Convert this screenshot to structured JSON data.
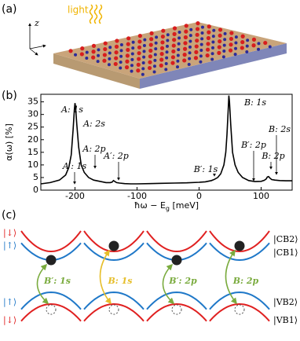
{
  "panel_labels": [
    "(a)",
    "(b)",
    "(c)"
  ],
  "panel_a": {
    "light": "light",
    "axis": "z"
  },
  "chart_data": {
    "type": "line",
    "ylabel": "α(ω) [%]",
    "xlabel": {
      "main": "ħω − E",
      "sub": "g",
      "unit": " [meV]"
    },
    "x": [
      -255,
      -240,
      -225,
      -215,
      -210,
      -206,
      -203,
      -201,
      -200,
      -199,
      -197,
      -194,
      -190,
      -185,
      -178,
      -170,
      -160,
      -150,
      -143,
      -140,
      -138,
      -136,
      -133,
      -128,
      -120,
      -110,
      -100,
      -80,
      -60,
      -40,
      -20,
      0,
      10,
      20,
      25,
      30,
      35,
      40,
      43,
      45,
      47,
      48,
      49,
      51,
      54,
      58,
      63,
      70,
      80,
      90,
      100,
      105,
      108,
      110,
      112,
      114,
      117,
      122,
      130,
      140,
      150
    ],
    "series": [
      {
        "color": "#000000",
        "values": [
          2.5,
          3,
          4,
          6,
          9,
          14,
          24,
          32,
          34.5,
          33,
          26,
          17,
          10,
          7,
          5,
          4,
          3.5,
          3,
          3,
          3.2,
          3.8,
          3.5,
          3,
          2.8,
          2.6,
          2.5,
          2.5,
          2.6,
          2.7,
          2.8,
          2.9,
          3.1,
          3.3,
          3.8,
          4.3,
          5,
          6.5,
          10,
          15,
          22,
          32,
          37.5,
          35,
          26,
          15,
          10,
          7,
          5,
          3.8,
          3.4,
          3.5,
          3.9,
          4.4,
          5.2,
          5.4,
          4.8,
          4.2,
          4,
          3.8,
          3.7,
          3.7
        ]
      }
    ],
    "xlim": [
      -255,
      150
    ],
    "ylim": [
      0,
      38
    ],
    "xticks": [
      -200,
      -100,
      0,
      100
    ],
    "yticks": [
      0,
      5,
      10,
      15,
      20,
      25,
      30,
      35
    ],
    "grid": false,
    "annotations": [
      "A: 1s",
      "A: 2s",
      "A: 2p",
      "A′: 1s",
      "A′: 2p",
      "B′: 1s",
      "B: 1s",
      "B′: 2p",
      "B: 2s",
      "B: 2p"
    ]
  },
  "panel_c": {
    "left_top": [
      "|↓⟩",
      "|↑⟩"
    ],
    "left_bottom": [
      "|↑⟩",
      "|↓⟩"
    ],
    "right": [
      "|CB2⟩",
      "|CB1⟩",
      "|VB2⟩",
      "|VB1⟩"
    ],
    "transitions": [
      {
        "label": "B′: 1s",
        "color": "#7aab3e"
      },
      {
        "label": "B: 1s",
        "color": "#e6be2a"
      },
      {
        "label": "B′: 2p",
        "color": "#7aab3e"
      },
      {
        "label": "B: 2p",
        "color": "#7aab3e"
      }
    ]
  }
}
